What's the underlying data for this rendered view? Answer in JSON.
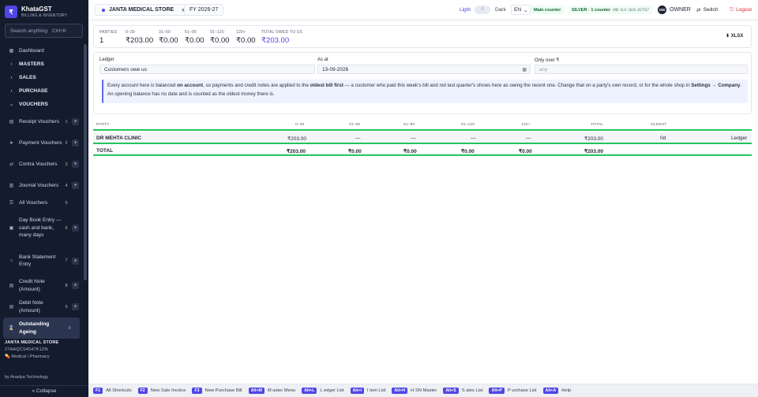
{
  "app": {
    "brand": "KhataGST",
    "tagline": "BILLING & INVENTORY",
    "logo_glyph": "₹"
  },
  "sidebar": {
    "search_label": "Search anything",
    "search_shortcut": "Ctrl+K",
    "items": [
      {
        "label": "Dashboard",
        "icon": "grid-icon"
      },
      {
        "label": "MASTERS",
        "icon": "chevron-right-icon"
      },
      {
        "label": "SALES",
        "icon": "chevron-right-icon"
      },
      {
        "label": "PURCHASE",
        "icon": "chevron-right-icon"
      },
      {
        "label": "VOUCHERS",
        "icon": "chevron-down-icon"
      },
      {
        "label": "Receipt Vouchers",
        "num": "1",
        "icon": "receipt-icon"
      },
      {
        "label": "Payment Vouchers",
        "num": "2",
        "icon": "payment-icon"
      },
      {
        "label": "Contra Vouchers",
        "num": "3",
        "icon": "contra-icon"
      },
      {
        "label": "Journal Vouchers",
        "num": "4",
        "icon": "journal-icon"
      },
      {
        "label": "All Vouchers",
        "num": "5",
        "icon": "list-icon"
      },
      {
        "label": "Day Book Entry — cash and bank, many days",
        "num": "6",
        "icon": "book-icon"
      },
      {
        "label": "Bank Statement Entry",
        "num": "7",
        "icon": "bank-icon"
      },
      {
        "label": "Credit Note (Amount)",
        "num": "8",
        "icon": "credit-note-icon"
      },
      {
        "label": "Debit Note (Amount)",
        "num": "9",
        "icon": "debit-note-icon"
      },
      {
        "label": "Outstanding Ageing",
        "num": "0",
        "icon": "ageing-icon"
      }
    ],
    "store_name": "JANTA MEDICAL STORE",
    "gstin": "27AAQCS4547K1ZN",
    "business_type": "Medical / Pharmacy",
    "by": "by Anadya Technology",
    "collapse_label": "« Collapse"
  },
  "topbar": {
    "store": "JANTA MEDICAL STORE",
    "fy": "FY 2026-27",
    "light": "Light",
    "toggle": "0",
    "dark": "Dark",
    "lang": "EN",
    "counter": "Main counter",
    "license": "SILVER · 1 counter",
    "license_key": "AND-SLV-2026-4E7F07",
    "avatar": "OW",
    "role": "OWNER",
    "switch": "Switch",
    "logout": "Logout"
  },
  "summary": {
    "cells": [
      {
        "cap": "PARTIES",
        "val": "1"
      },
      {
        "cap": "0–30",
        "val": "₹203.00"
      },
      {
        "cap": "31–60",
        "val": "₹0.00"
      },
      {
        "cap": "61–90",
        "val": "₹0.00"
      },
      {
        "cap": "91–120",
        "val": "₹0.00"
      },
      {
        "cap": "120+",
        "val": "₹0.00"
      },
      {
        "cap": "TOTAL OWED TO US",
        "val": "₹203.00"
      }
    ],
    "xlsx": "⬇ XLSX"
  },
  "filters": {
    "ledger_label": "Ledger",
    "ledger_value": "Customers owe us",
    "asat_label": "As at",
    "asat_value": "13-09-2026",
    "only_over_label": "Only over ₹",
    "only_over_placeholder": "any",
    "info_1": "Every account here is balanced ",
    "info_b1": "on account",
    "info_2": ", so payments and credit notes are applied to the ",
    "info_b2": "oldest bill first",
    "info_3": " — a customer who paid this week's bill and not last quarter's shows here as owing the recent one. Change that on a party's own record, or for the whole shop in ",
    "info_b3": "Settings → Company",
    "info_4": ".",
    "info_line2": "An opening balance has no date and is counted as the oldest money there is."
  },
  "table": {
    "headers": [
      "PARTY",
      "0–30",
      "31–60",
      "61–90",
      "91–120",
      "120+",
      "TOTAL",
      "OLDEST"
    ],
    "row": {
      "party": "DR MEHTA CLINIC",
      "b0": "₹203.00",
      "b1": "—",
      "b2": "—",
      "b3": "—",
      "b4": "—",
      "total": "₹203.00",
      "oldest": "0d",
      "ledger": "Ledger"
    },
    "total": {
      "label": "TOTAL",
      "b0": "₹203.00",
      "b1": "₹0.00",
      "b2": "₹0.00",
      "b3": "₹0.00",
      "b4": "₹0.00",
      "total": "₹203.00"
    }
  },
  "footer": {
    "shortcuts": [
      {
        "key": "F1",
        "label": "All Shortcuts"
      },
      {
        "key": "F2",
        "label": "New Sale Invoice"
      },
      {
        "key": "F3",
        "label": "New Purchase Bill"
      },
      {
        "key": "Alt+M",
        "label": "M aster Menu"
      },
      {
        "key": "Alt+L",
        "label": "L edger List"
      },
      {
        "key": "Alt+I",
        "label": "I tem List"
      },
      {
        "key": "Alt+H",
        "label": "H SN Master"
      },
      {
        "key": "Alt+S",
        "label": "S ales List"
      },
      {
        "key": "Alt+P",
        "label": "P urchase List"
      },
      {
        "key": "Alt+A",
        "label": "Help"
      }
    ]
  }
}
